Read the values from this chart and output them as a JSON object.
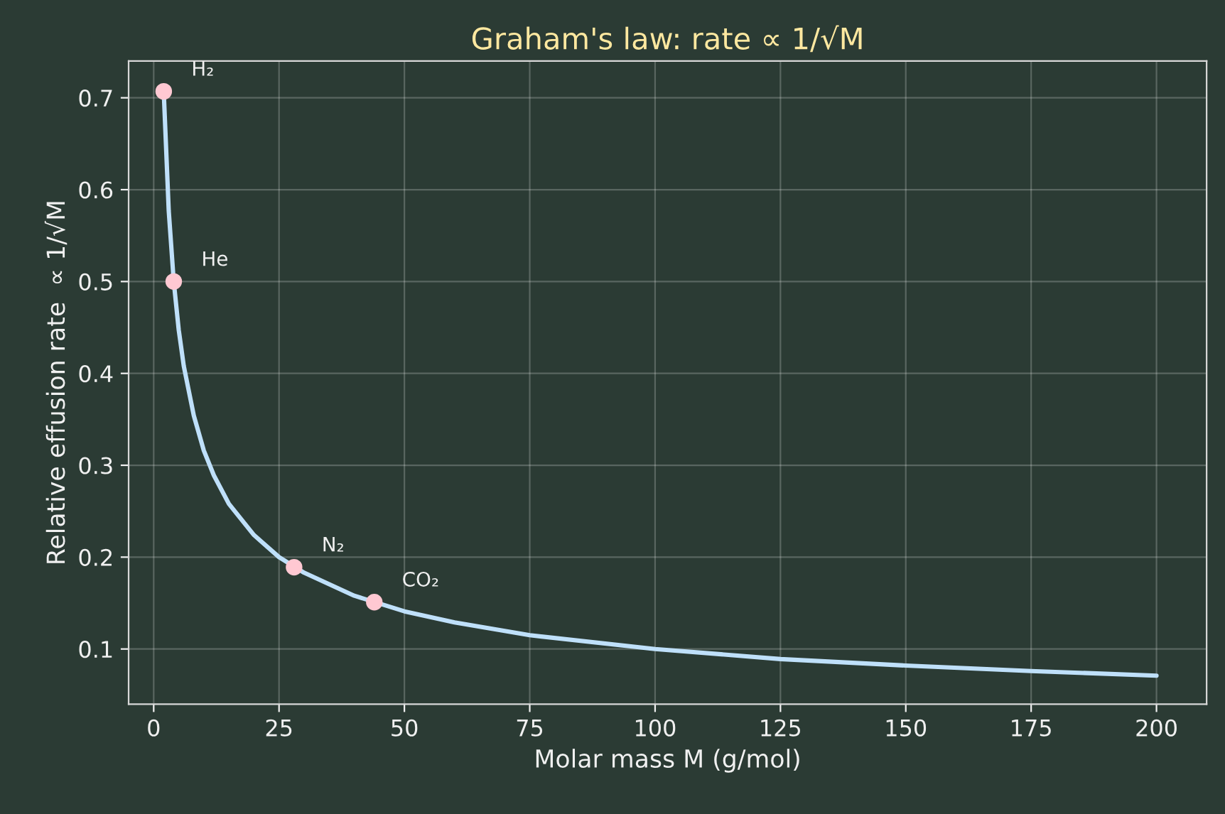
{
  "chart_data": {
    "type": "line",
    "title": "Graham's law: rate ∝ 1/√M",
    "xlabel": "Molar mass M (g/mol)",
    "ylabel": "Relative effusion rate  ∝ 1/√M",
    "series": [
      {
        "color": "#bfe0fa",
        "marker": "none",
        "x": [
          2,
          3,
          4,
          5,
          6,
          8,
          10,
          12,
          15,
          20,
          25,
          30,
          40,
          50,
          60,
          75,
          100,
          125,
          150,
          175,
          200
        ],
        "values": [
          0.707,
          0.577,
          0.5,
          0.447,
          0.408,
          0.354,
          0.316,
          0.289,
          0.258,
          0.224,
          0.2,
          0.183,
          0.158,
          0.141,
          0.129,
          0.115,
          0.1,
          0.089,
          0.082,
          0.076,
          0.071
        ]
      },
      {
        "type": "scatter",
        "color": "#ffc8d2",
        "marker": "circle",
        "x": [
          2,
          4,
          28,
          44
        ],
        "values": [
          0.707,
          0.5,
          0.189,
          0.151
        ]
      }
    ],
    "annotations": [
      {
        "text": "H₂",
        "x": 2,
        "y": 0.707
      },
      {
        "text": "He",
        "x": 4,
        "y": 0.5
      },
      {
        "text": "N₂",
        "x": 28,
        "y": 0.189
      },
      {
        "text": "CO₂",
        "x": 44,
        "y": 0.151
      }
    ],
    "xlim": [
      -5,
      210
    ],
    "ylim": [
      0.04,
      0.74
    ],
    "xticks": [
      0,
      25,
      50,
      75,
      100,
      125,
      150,
      175,
      200
    ],
    "yticks": [
      0.1,
      0.2,
      0.3,
      0.4,
      0.5,
      0.6,
      0.7
    ],
    "grid": true
  }
}
